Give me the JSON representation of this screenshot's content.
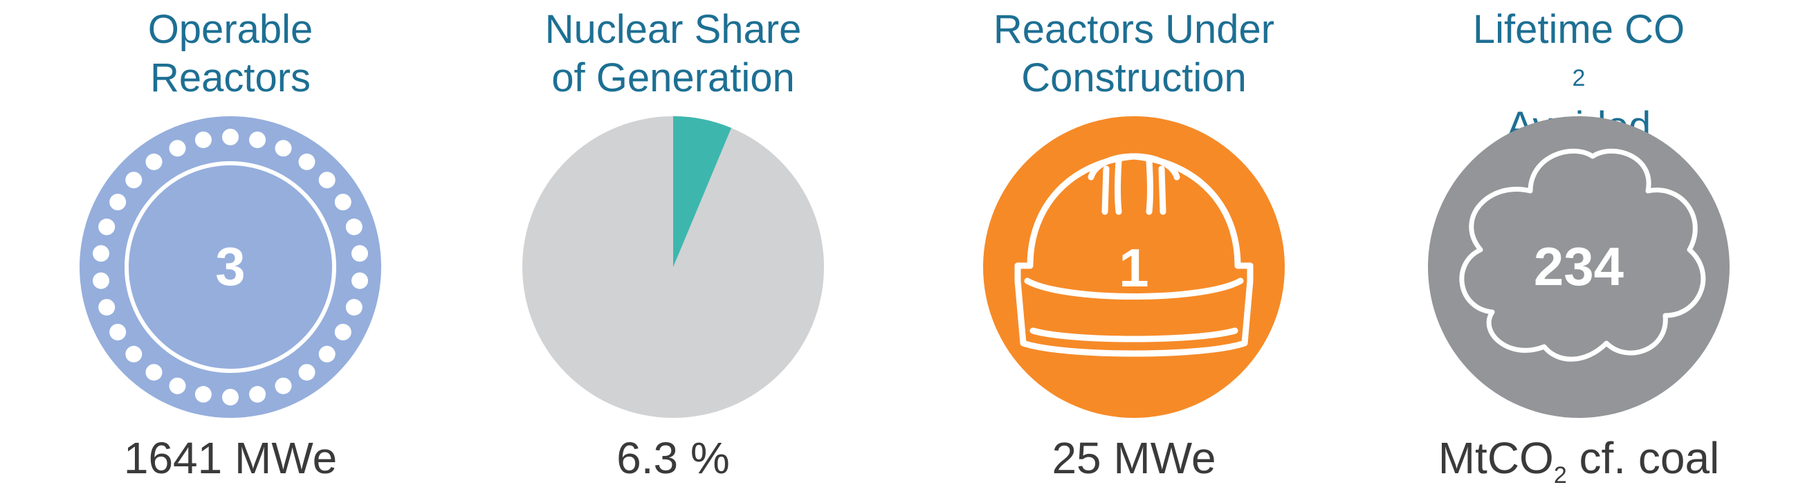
{
  "colors": {
    "title": "#1d6f93",
    "value_text": "#3a3a3a",
    "reactors_blue": "#95aedc",
    "pie_gray": "#d1d2d4",
    "pie_teal": "#3db7ae",
    "construction_orange": "#f68a27",
    "co2_gray": "#939598"
  },
  "panels": {
    "operable": {
      "title_line1": "Operable",
      "title_line2": "Reactors",
      "number": "3",
      "value": "1641 MWe",
      "icon": "reactor-core-icon"
    },
    "share": {
      "title_line1": "Nuclear Share",
      "title_line2": "of Generation",
      "value": "6.3 %",
      "percent": 6.3
    },
    "construction": {
      "title_line1": "Reactors Under",
      "title_line2": "Construction",
      "number": "1",
      "value": "25 MWe",
      "icon": "hard-hat-icon"
    },
    "co2": {
      "title_line1_pre": "Lifetime CO",
      "title_line1_sub": "2",
      "title_line2": "Avoided",
      "number": "234",
      "value_pre": "MtCO",
      "value_sub": "2",
      "value_post": " cf. coal",
      "icon": "cloud-icon"
    }
  }
}
